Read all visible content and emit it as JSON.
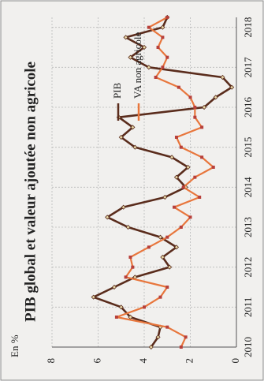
{
  "chart_data": {
    "type": "line",
    "title": "PIB global et valeur ajoutée non agricole",
    "y_label": "En %",
    "x": [
      2010,
      2010.25,
      2010.5,
      2010.75,
      2011,
      2011.25,
      2011.5,
      2011.75,
      2012,
      2012.25,
      2012.5,
      2012.75,
      2013,
      2013.25,
      2013.5,
      2013.75,
      2014,
      2014.25,
      2014.5,
      2014.75,
      2015,
      2015.25,
      2015.5,
      2015.75,
      2016,
      2016.25,
      2016.5,
      2016.75,
      2017,
      2017.25,
      2017.5,
      2017.75,
      2018,
      2018.25
    ],
    "series": [
      {
        "name": "PIB",
        "color": "#5a2c1c",
        "values": [
          3.7,
          3.4,
          3.3,
          4.6,
          5.0,
          6.2,
          5.3,
          4.4,
          2.9,
          3.2,
          2.6,
          3.3,
          4.7,
          5.6,
          4.9,
          3.1,
          2.2,
          2.6,
          2.1,
          2.8,
          4.4,
          5.0,
          4.5,
          5.1,
          1.4,
          0.9,
          0.2,
          0.6,
          3.8,
          4.6,
          4.0,
          4.8,
          3.2,
          3.0
        ]
      },
      {
        "name": "VA non agricole",
        "color": "#e8763c",
        "values": [
          2.4,
          2.2,
          3.0,
          5.2,
          4.0,
          3.3,
          3.0,
          4.8,
          4.5,
          4.6,
          3.8,
          3.0,
          2.4,
          2.0,
          2.7,
          1.6,
          2.3,
          1.8,
          1.0,
          1.5,
          2.4,
          2.6,
          1.5,
          1.8,
          1.8,
          2.0,
          2.5,
          3.5,
          3.2,
          3.0,
          3.4,
          3.2,
          3.8,
          3.0
        ]
      }
    ],
    "xlim": [
      2010,
      2018.25
    ],
    "xticks": [
      2010,
      2011,
      2012,
      2013,
      2014,
      2015,
      2016,
      2017,
      2018
    ],
    "ylim": [
      0,
      8
    ],
    "yticks": [
      0,
      2,
      4,
      6,
      8
    ],
    "grid": true,
    "legend": "top-right"
  }
}
